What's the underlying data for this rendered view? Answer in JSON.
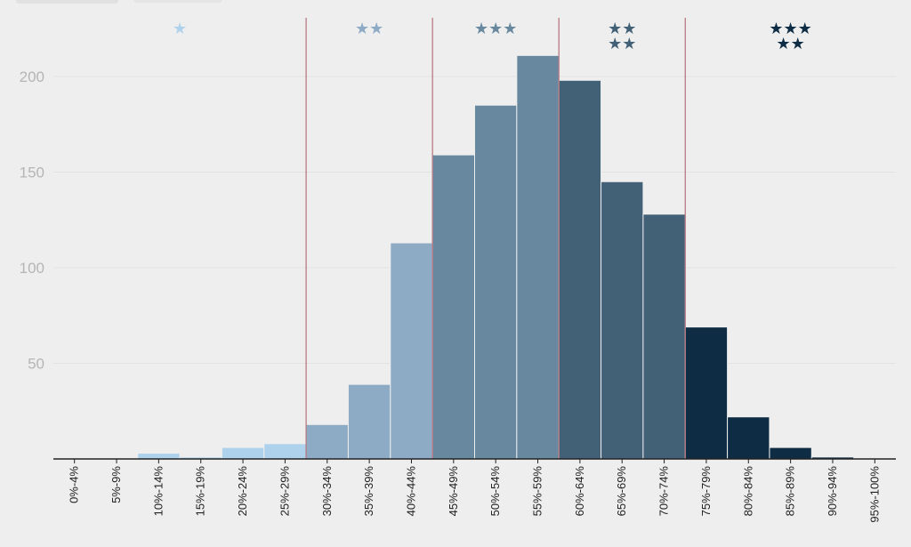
{
  "chart_data": {
    "type": "bar",
    "title": "",
    "xlabel": "",
    "ylabel": "",
    "ylim": [
      0,
      230
    ],
    "yticks": [
      50,
      100,
      150,
      200
    ],
    "grid": true,
    "categories": [
      "0%-4%",
      "5%-9%",
      "10%-14%",
      "15%-19%",
      "20%-24%",
      "25%-29%",
      "30%-34%",
      "35%-39%",
      "40%-44%",
      "45%-49%",
      "50%-54%",
      "55%-59%",
      "60%-64%",
      "65%-69%",
      "70%-74%",
      "75%-79%",
      "80%-84%",
      "85%-89%",
      "90%-94%",
      "95%-100%"
    ],
    "values": [
      0,
      0,
      3,
      1,
      6,
      8,
      18,
      39,
      113,
      159,
      185,
      211,
      198,
      145,
      128,
      69,
      22,
      6,
      1,
      0
    ],
    "tiers": [
      {
        "label": "★",
        "line2": "",
        "start": 0,
        "end": 5,
        "color": "#aed1ec"
      },
      {
        "label": "★★",
        "line2": "",
        "start": 6,
        "end": 8,
        "color": "#8eabc6"
      },
      {
        "label": "★★★",
        "line2": "",
        "start": 9,
        "end": 11,
        "color": "#67889f"
      },
      {
        "label": "★★",
        "line2": "★★",
        "start": 12,
        "end": 14,
        "color": "#426076"
      },
      {
        "label": "★★★",
        "line2": "★★",
        "start": 15,
        "end": 19,
        "color": "#0e2d44"
      }
    ],
    "divider_color": "#b5707a",
    "axis_color": "#222222"
  }
}
